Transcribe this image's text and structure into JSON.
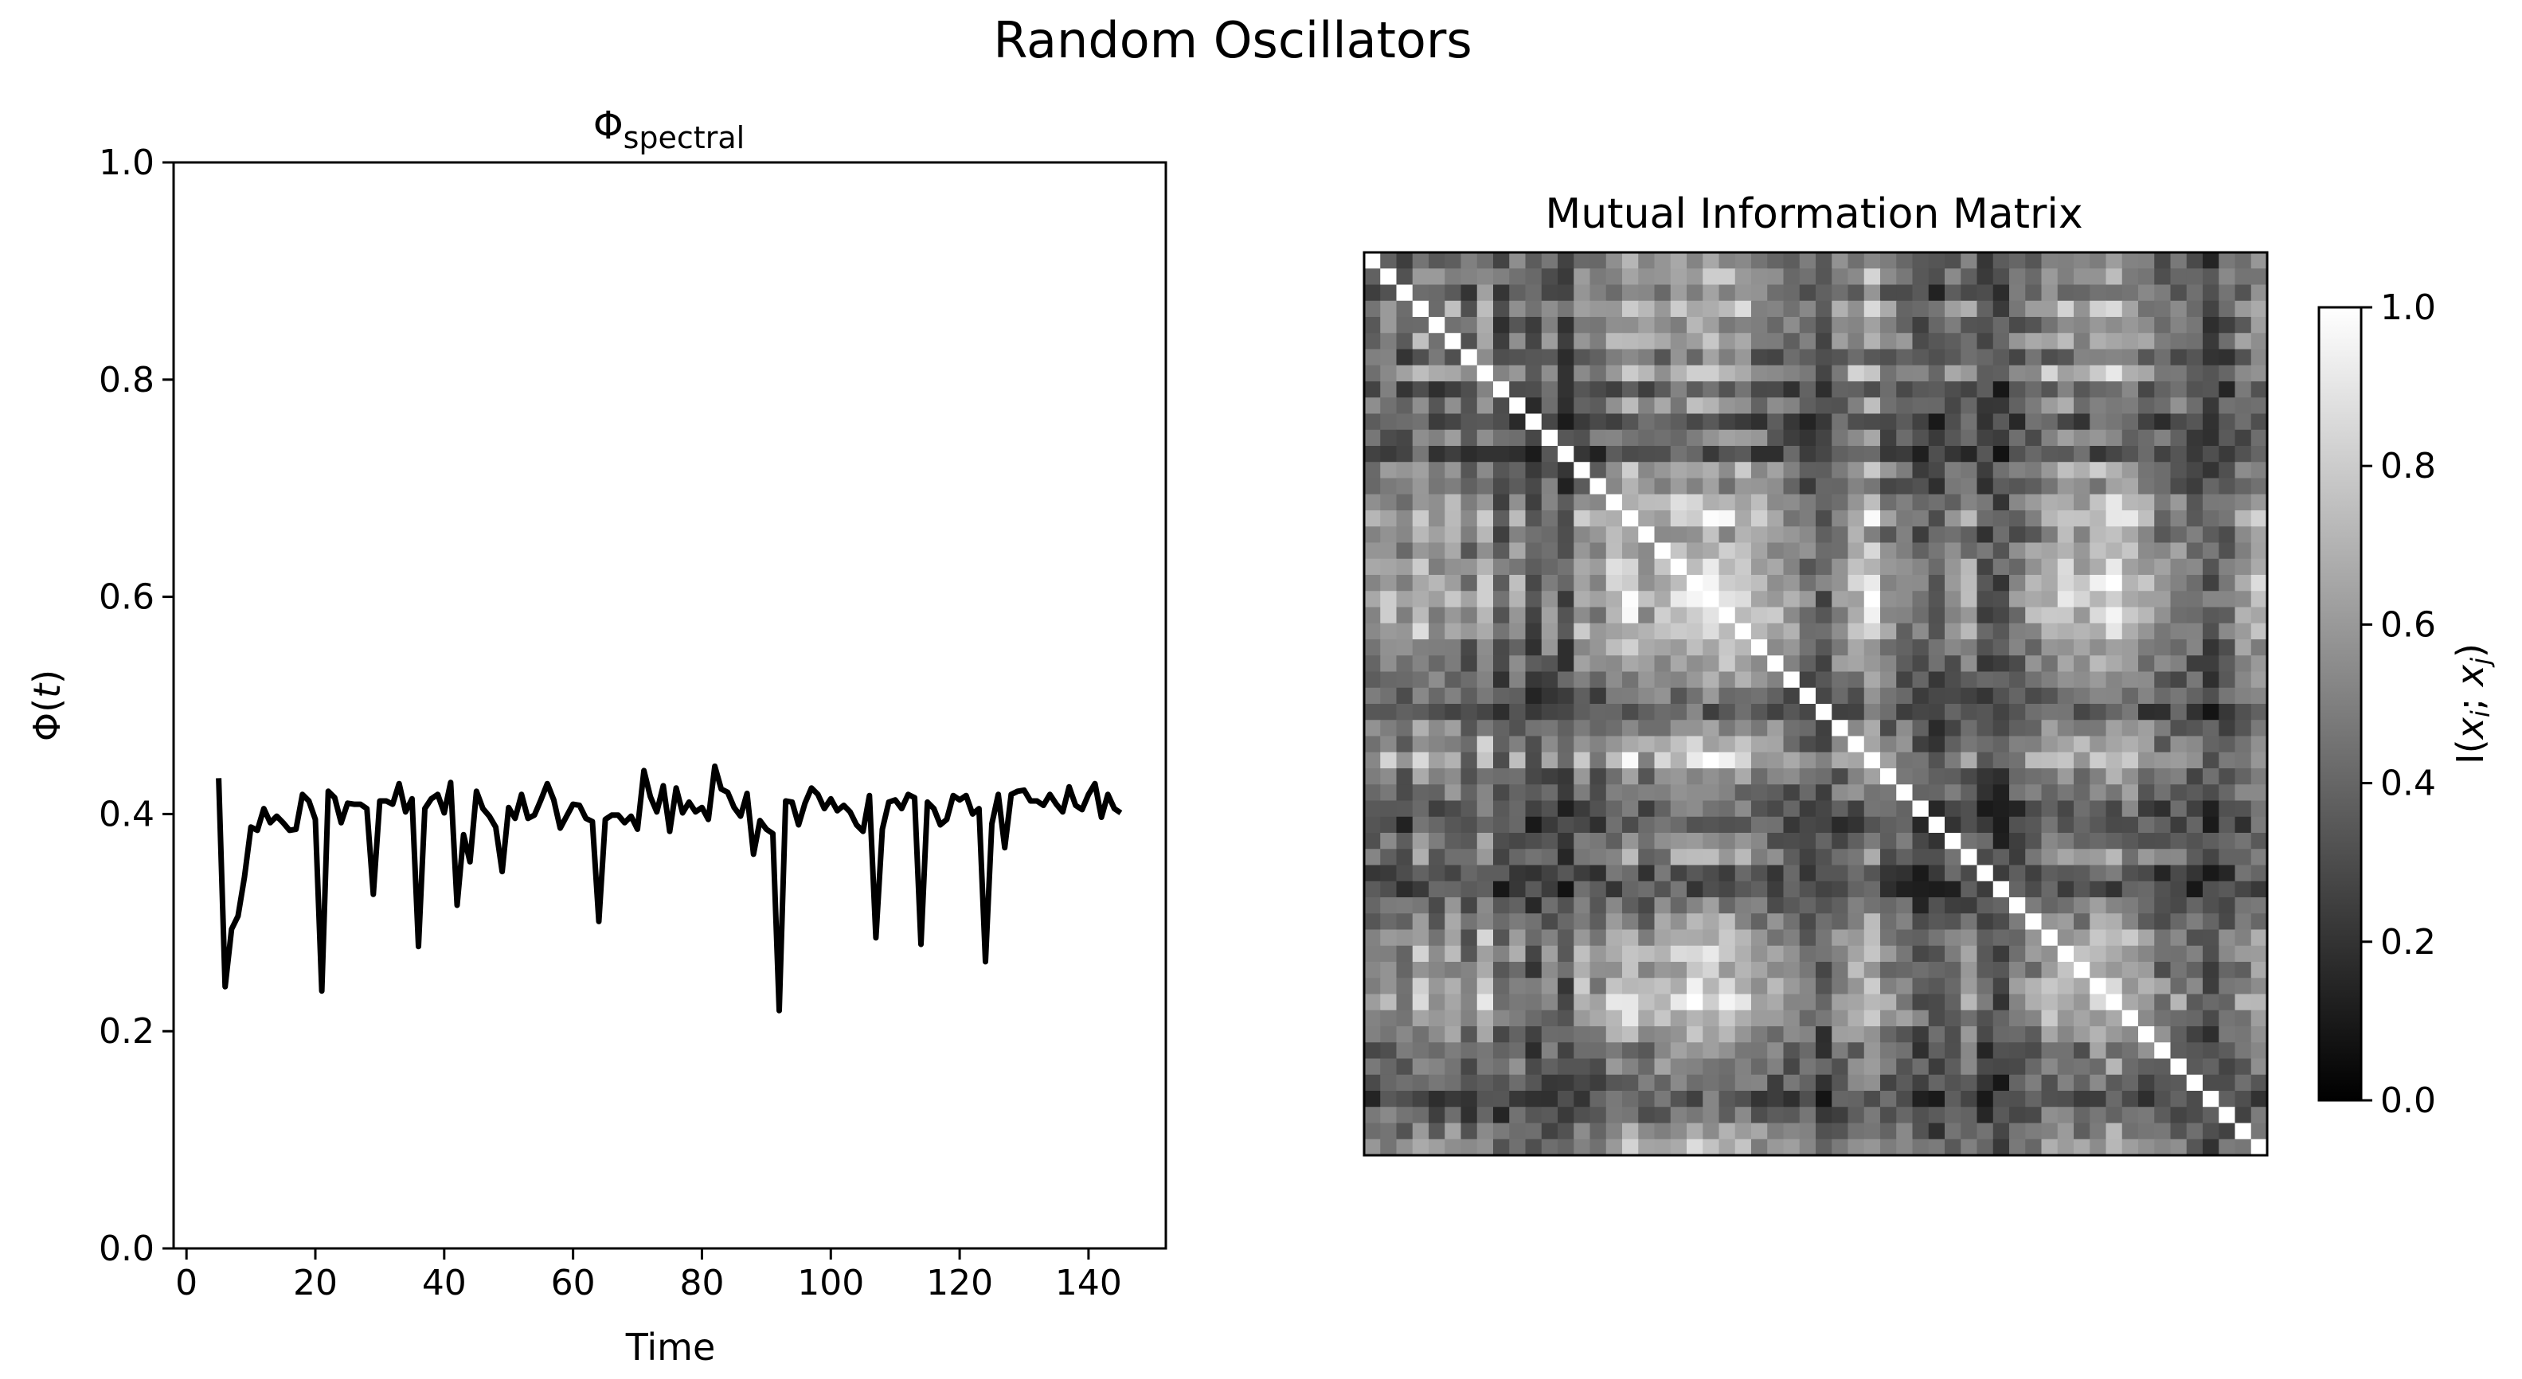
{
  "figure": {
    "title": "Random Oscillators"
  },
  "chart_data": [
    {
      "type": "line",
      "title_main": "Φ",
      "title_sub": "spectral",
      "xlabel": "Time",
      "ylabel_main": "Φ(",
      "ylabel_var": "t",
      "ylabel_close": ")",
      "xlim": [
        -2,
        152
      ],
      "ylim": [
        0,
        1
      ],
      "xticks": [
        0,
        20,
        40,
        60,
        80,
        100,
        120,
        140
      ],
      "xtick_labels": [
        "0",
        "20",
        "40",
        "60",
        "80",
        "100",
        "120",
        "140"
      ],
      "yticks": [
        0,
        0.2,
        0.4,
        0.6,
        0.8,
        1
      ],
      "ytick_labels": [
        "0.0",
        "0.2",
        "0.4",
        "0.6",
        "0.8",
        "1.0"
      ],
      "line_color": "#000000",
      "x": [
        5,
        6,
        7,
        8,
        9,
        10,
        11,
        12,
        13,
        14,
        15,
        16,
        17,
        18,
        19,
        20,
        21,
        22,
        23,
        24,
        25,
        26,
        27,
        28,
        29,
        30,
        31,
        32,
        33,
        34,
        35,
        36,
        37,
        38,
        39,
        40,
        41,
        42,
        43,
        44,
        45,
        46,
        47,
        48,
        49,
        50,
        51,
        52,
        53,
        54,
        55,
        56,
        57,
        58,
        59,
        60,
        61,
        62,
        63,
        64,
        65,
        66,
        67,
        68,
        69,
        70,
        71,
        72,
        73,
        74,
        75,
        76,
        77,
        78,
        79,
        80,
        81,
        82,
        83,
        84,
        85,
        86,
        87,
        88,
        89,
        90,
        91,
        92,
        93,
        94,
        95,
        96,
        97,
        98,
        99,
        100,
        101,
        102,
        103,
        104,
        105,
        106,
        107,
        108,
        109,
        110,
        111,
        112,
        113,
        114,
        115,
        116,
        117,
        118,
        119,
        120,
        121,
        122,
        123,
        124,
        125,
        126,
        127,
        128,
        129,
        130,
        131,
        132,
        133,
        134,
        135,
        136,
        137,
        138,
        139,
        140,
        141,
        142,
        143,
        144,
        145
      ],
      "y": [
        0.433,
        0.241,
        0.294,
        0.306,
        0.342,
        0.388,
        0.385,
        0.405,
        0.392,
        0.398,
        0.392,
        0.385,
        0.386,
        0.418,
        0.412,
        0.395,
        0.237,
        0.421,
        0.415,
        0.392,
        0.41,
        0.409,
        0.409,
        0.405,
        0.326,
        0.412,
        0.412,
        0.409,
        0.428,
        0.402,
        0.414,
        0.278,
        0.405,
        0.414,
        0.418,
        0.401,
        0.429,
        0.316,
        0.381,
        0.356,
        0.421,
        0.405,
        0.398,
        0.388,
        0.347,
        0.406,
        0.396,
        0.418,
        0.396,
        0.399,
        0.413,
        0.428,
        0.413,
        0.387,
        0.398,
        0.409,
        0.408,
        0.396,
        0.393,
        0.301,
        0.395,
        0.399,
        0.399,
        0.392,
        0.398,
        0.386,
        0.44,
        0.416,
        0.402,
        0.426,
        0.384,
        0.424,
        0.401,
        0.411,
        0.402,
        0.406,
        0.395,
        0.444,
        0.423,
        0.42,
        0.406,
        0.398,
        0.419,
        0.363,
        0.394,
        0.386,
        0.382,
        0.219,
        0.412,
        0.411,
        0.39,
        0.41,
        0.424,
        0.418,
        0.405,
        0.414,
        0.403,
        0.408,
        0.402,
        0.39,
        0.384,
        0.417,
        0.286,
        0.386,
        0.411,
        0.413,
        0.405,
        0.418,
        0.415,
        0.28,
        0.411,
        0.405,
        0.39,
        0.395,
        0.417,
        0.413,
        0.417,
        0.4,
        0.405,
        0.264,
        0.391,
        0.418,
        0.369,
        0.418,
        0.421,
        0.422,
        0.412,
        0.412,
        0.408,
        0.418,
        0.409,
        0.402,
        0.425,
        0.408,
        0.404,
        0.418,
        0.428,
        0.397,
        0.418,
        0.405,
        0.401
      ]
    },
    {
      "type": "heatmap",
      "title": "Mutual Information Matrix",
      "n": 56,
      "vmin": 0,
      "vmax": 1,
      "colormap": "grayscale (black = 0, white = 1)",
      "diagonal_value": 1.0,
      "colorbar_label_main": "I(",
      "colorbar_label_vars": [
        "x",
        "i",
        "x",
        "j"
      ],
      "colorbar_label_sep": "; ",
      "colorbar_label_close": ")",
      "colorbar_ticks": [
        0,
        0.2,
        0.4,
        0.6,
        0.8,
        1
      ],
      "colorbar_tick_labels": [
        "0.0",
        "0.2",
        "0.4",
        "0.6",
        "0.8",
        "1.0"
      ],
      "node_profile": [
        0.55,
        0.7,
        0.5,
        0.8,
        0.6,
        0.75,
        0.45,
        0.85,
        0.35,
        0.6,
        0.3,
        0.5,
        0.25,
        0.7,
        0.55,
        0.8,
        0.9,
        0.65,
        0.75,
        0.85,
        0.95,
        0.95,
        0.9,
        0.85,
        0.7,
        0.65,
        0.55,
        0.45,
        0.3,
        0.6,
        0.75,
        0.9,
        0.55,
        0.5,
        0.35,
        0.3,
        0.5,
        0.6,
        0.3,
        0.25,
        0.45,
        0.6,
        0.75,
        0.8,
        0.7,
        0.85,
        0.9,
        0.8,
        0.65,
        0.5,
        0.55,
        0.4,
        0.3,
        0.45,
        0.6,
        0.75
      ]
    }
  ]
}
